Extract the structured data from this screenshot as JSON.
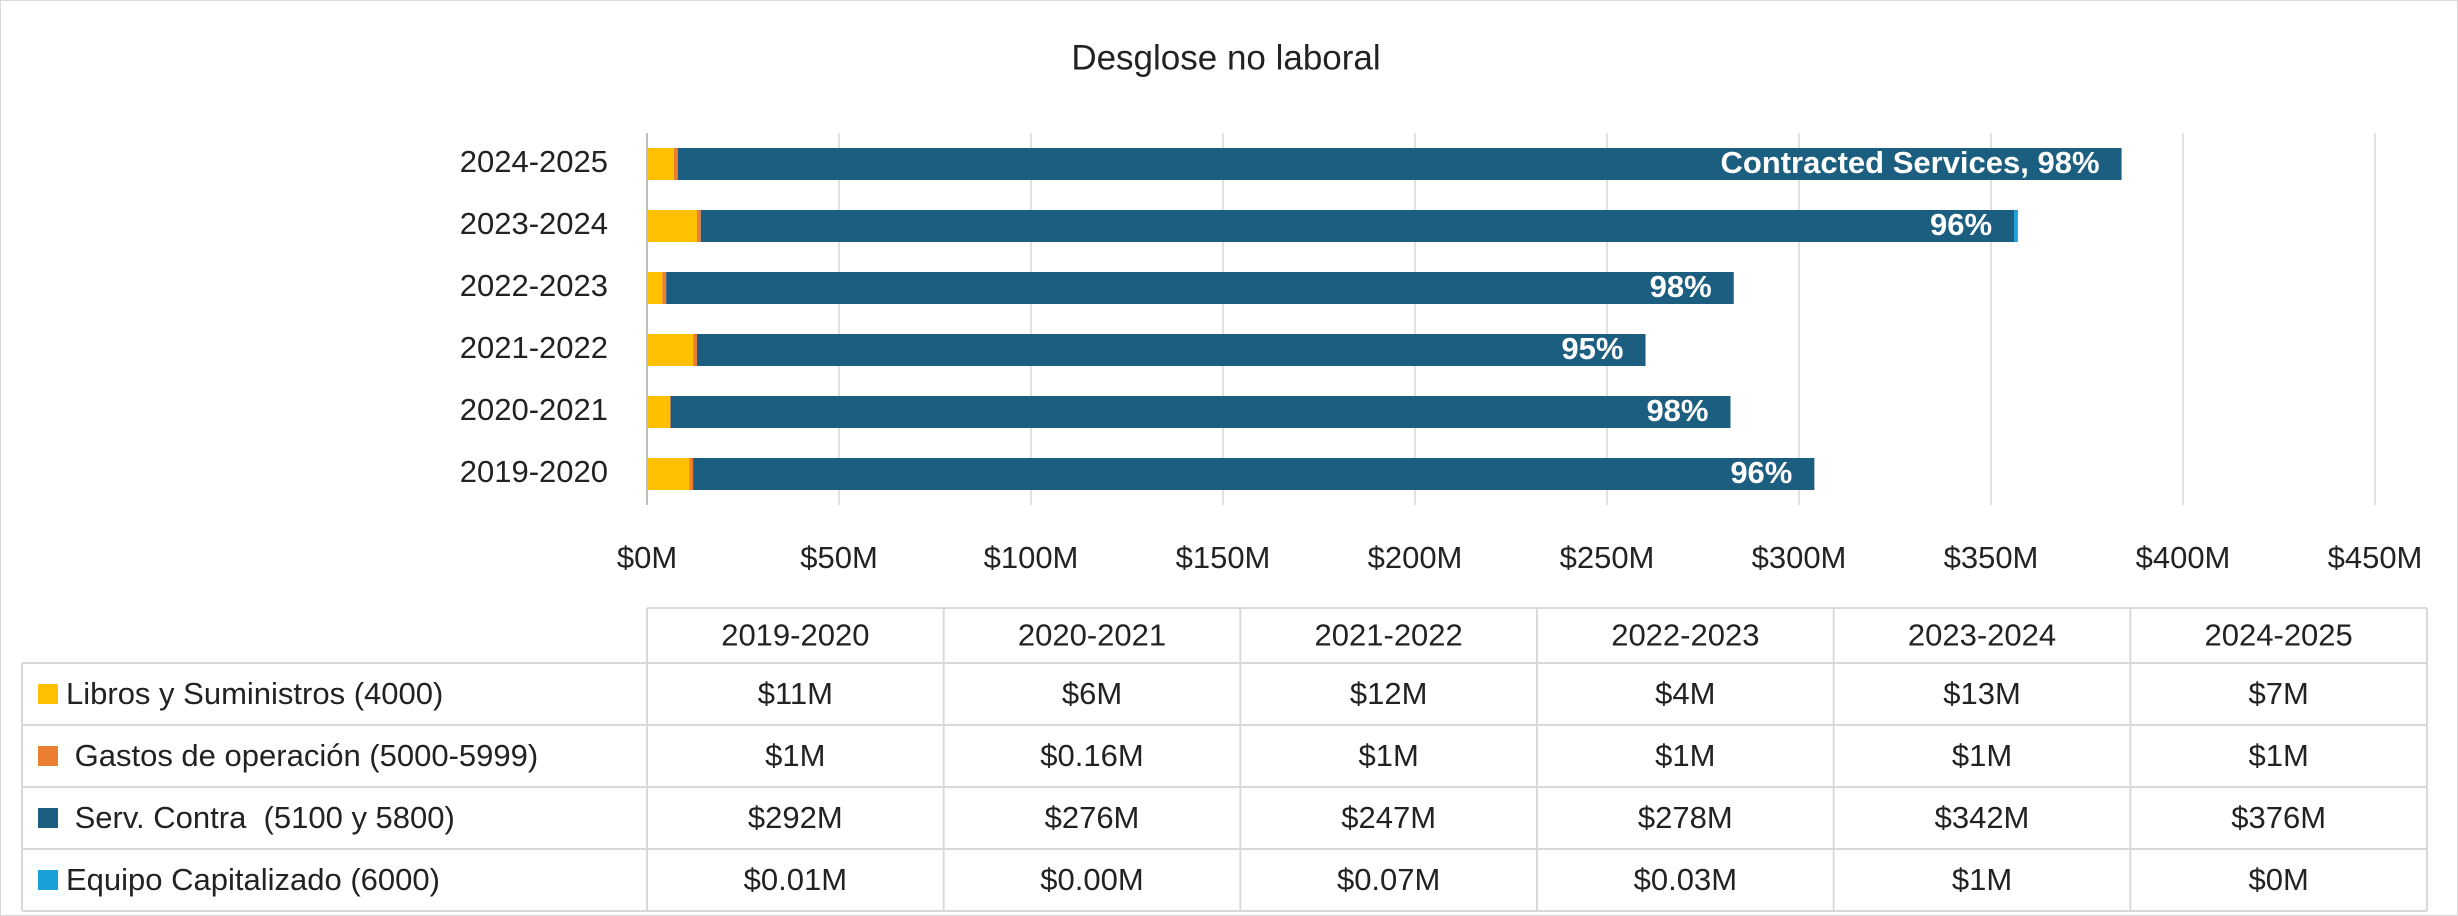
{
  "chart_data": {
    "type": "stacked_barh",
    "title": "Desglose no laboral",
    "categories": [
      "2019-2020",
      "2020-2021",
      "2021-2022",
      "2022-2023",
      "2023-2024",
      "2024-2025"
    ],
    "series": [
      {
        "name": "Libros y Suministros (4000)",
        "color": "#ffc000",
        "values": [
          11,
          6,
          12,
          4,
          13,
          7
        ],
        "value_labels": [
          "$11M",
          "$6M",
          "$12M",
          "$4M",
          "$13M",
          "$7M"
        ]
      },
      {
        "name": " Gastos de operación (5000-5999)",
        "color": "#ed7d31",
        "values": [
          1,
          0.16,
          1,
          1,
          1,
          1
        ],
        "value_labels": [
          "$1M",
          "$0.16M",
          "$1M",
          "$1M",
          "$1M",
          "$1M"
        ]
      },
      {
        "name": " Serv. Contra  (5100 y 5800)",
        "color": "#1b5e80",
        "values": [
          292,
          276,
          247,
          278,
          342,
          376
        ],
        "value_labels": [
          "$292M",
          "$276M",
          "$247M",
          "$278M",
          "$342M",
          "$376M"
        ],
        "bar_labels": [
          "96%",
          "98%",
          "95%",
          "98%",
          "96%",
          "Contracted Services, 98%"
        ]
      },
      {
        "name": "Equipo Capitalizado (6000)",
        "color": "#1ba1d8",
        "values": [
          0.01,
          0,
          0.07,
          0.03,
          1,
          0
        ],
        "value_labels": [
          "$0.01M",
          "$0.00M",
          "$0.07M",
          "$0.03M",
          "$1M",
          "$0M"
        ]
      }
    ],
    "xlim": [
      0,
      450
    ],
    "xticks": [
      {
        "value": 0,
        "label": "$0M"
      },
      {
        "value": 50,
        "label": "$50M"
      },
      {
        "value": 100,
        "label": "$100M"
      },
      {
        "value": 150,
        "label": "$150M"
      },
      {
        "value": 200,
        "label": "$200M"
      },
      {
        "value": 250,
        "label": "$250M"
      },
      {
        "value": 300,
        "label": "$300M"
      },
      {
        "value": 350,
        "label": "$350M"
      },
      {
        "value": 400,
        "label": "$400M"
      },
      {
        "value": 450,
        "label": "$450M"
      }
    ],
    "grid": true,
    "data_table": true
  }
}
